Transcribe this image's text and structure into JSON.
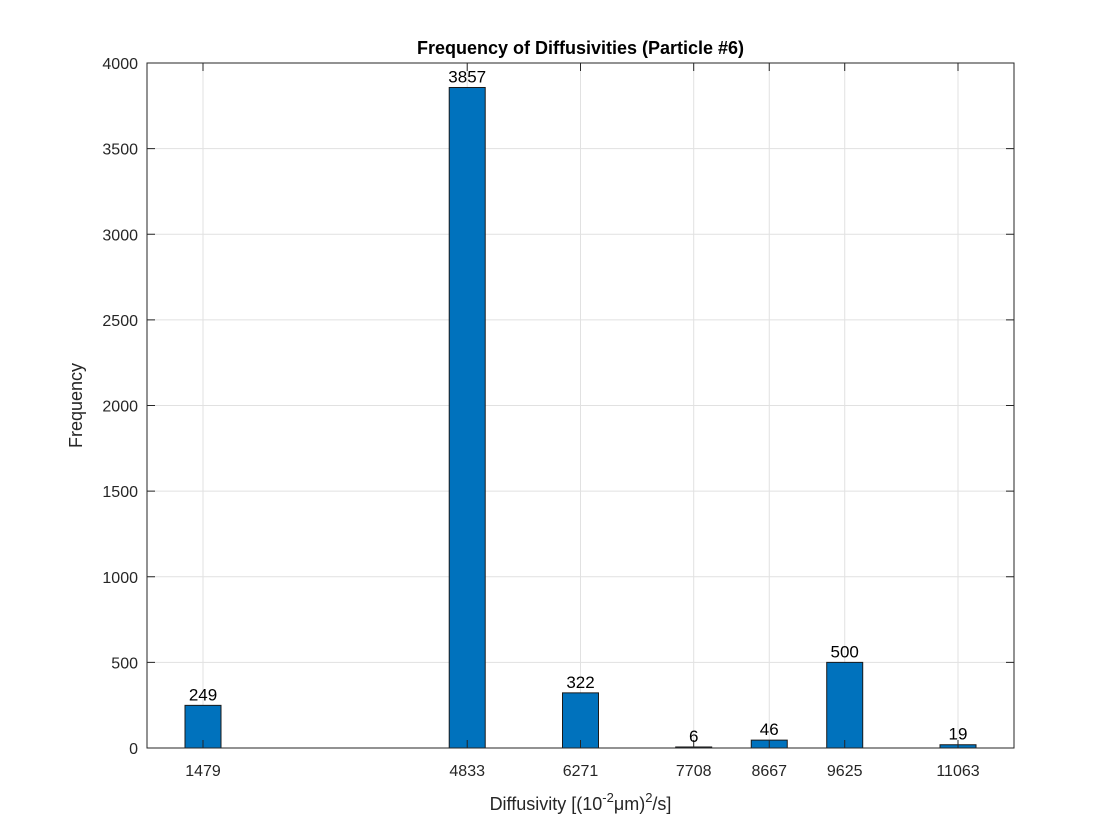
{
  "chart_data": {
    "type": "bar",
    "title": "Frequency of Diffusivities (Particle #6)",
    "xlabel_parts": [
      "Diffusivity [(10",
      "-2",
      "μm)",
      "2",
      "/s]"
    ],
    "ylabel": "Frequency",
    "x": [
      1479,
      4833,
      6271,
      7708,
      8667,
      9625,
      11063
    ],
    "values": [
      249,
      3857,
      322,
      6,
      46,
      500,
      19
    ],
    "data_labels": [
      "249",
      "3857",
      "322",
      "6",
      "46",
      "500",
      "19"
    ],
    "x_tick_labels": [
      "1479",
      "4833",
      "6271",
      "7708",
      "8667",
      "9625",
      "11063"
    ],
    "xlim": [
      1479,
      11063
    ],
    "ylim": [
      0,
      4000
    ],
    "y_ticks": [
      0,
      500,
      1000,
      1500,
      2000,
      2500,
      3000,
      3500,
      4000
    ],
    "y_tick_labels": [
      "0",
      "500",
      "1000",
      "1500",
      "2000",
      "2500",
      "3000",
      "3500",
      "4000"
    ],
    "grid": true,
    "bar_color": "#0072BD",
    "bar_edge_color": "#1a1a1a"
  }
}
